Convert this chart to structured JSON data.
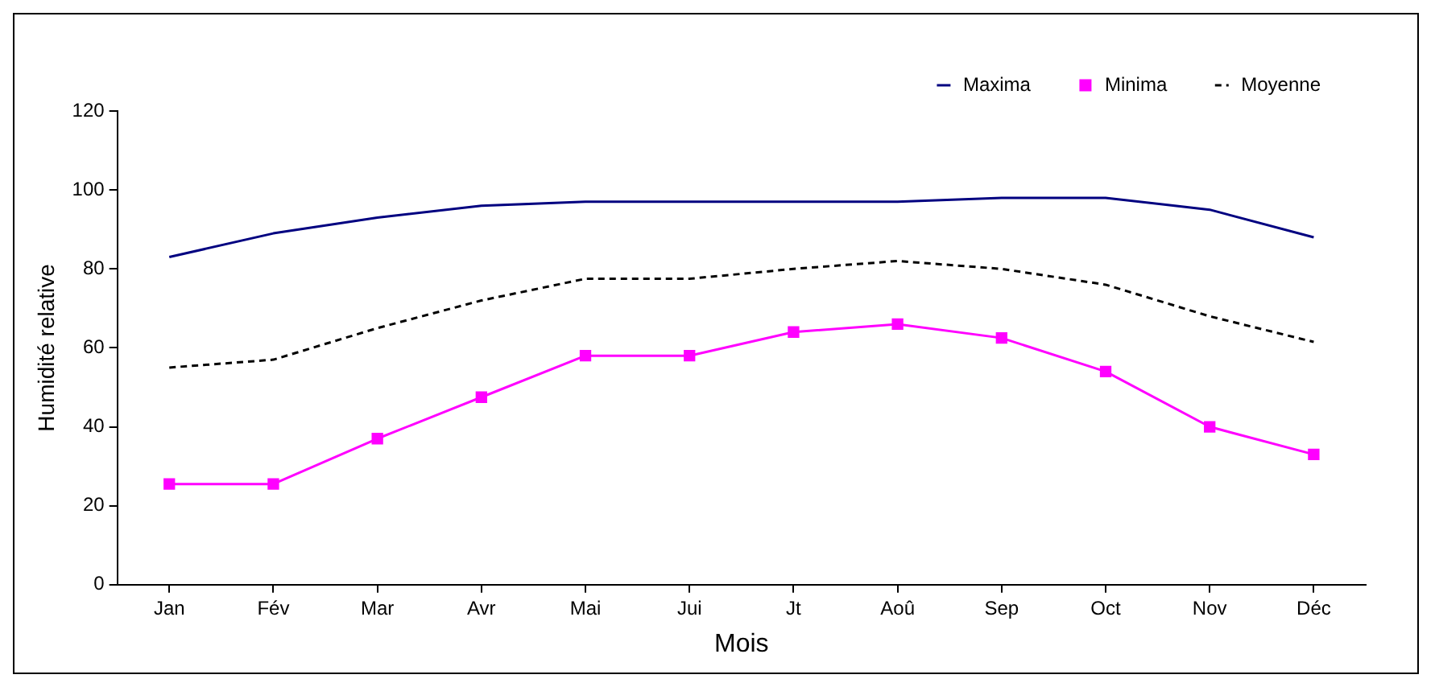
{
  "chart_data": {
    "type": "line",
    "xlabel": "Mois",
    "ylabel": "Humidité relative",
    "categories": [
      "Jan",
      "Fév",
      "Mar",
      "Avr",
      "Mai",
      "Jui",
      "Jt",
      "Aoû",
      "Sep",
      "Oct",
      "Nov",
      "Déc"
    ],
    "series": [
      {
        "name": "Maxima",
        "color": "#000080",
        "marker": "none",
        "line_style": "solid",
        "values": [
          83,
          89,
          93,
          96,
          97,
          97,
          97,
          97,
          98,
          98,
          95,
          88
        ]
      },
      {
        "name": "Minima",
        "color": "#ff00ff",
        "marker": "square",
        "line_style": "solid",
        "values": [
          25.5,
          25.5,
          37,
          47.5,
          58,
          58,
          64,
          66,
          62.5,
          54,
          40,
          33
        ]
      },
      {
        "name": "Moyenne",
        "color": "#000000",
        "marker": "none",
        "line_style": "dashed",
        "values": [
          55,
          57,
          65,
          72,
          77.5,
          77.5,
          80,
          82,
          80,
          76,
          68,
          61.5
        ]
      }
    ],
    "ylim": [
      0,
      120
    ],
    "yticks": [
      0,
      20,
      40,
      60,
      80,
      100,
      120
    ],
    "grid": false,
    "legend": "top right"
  }
}
